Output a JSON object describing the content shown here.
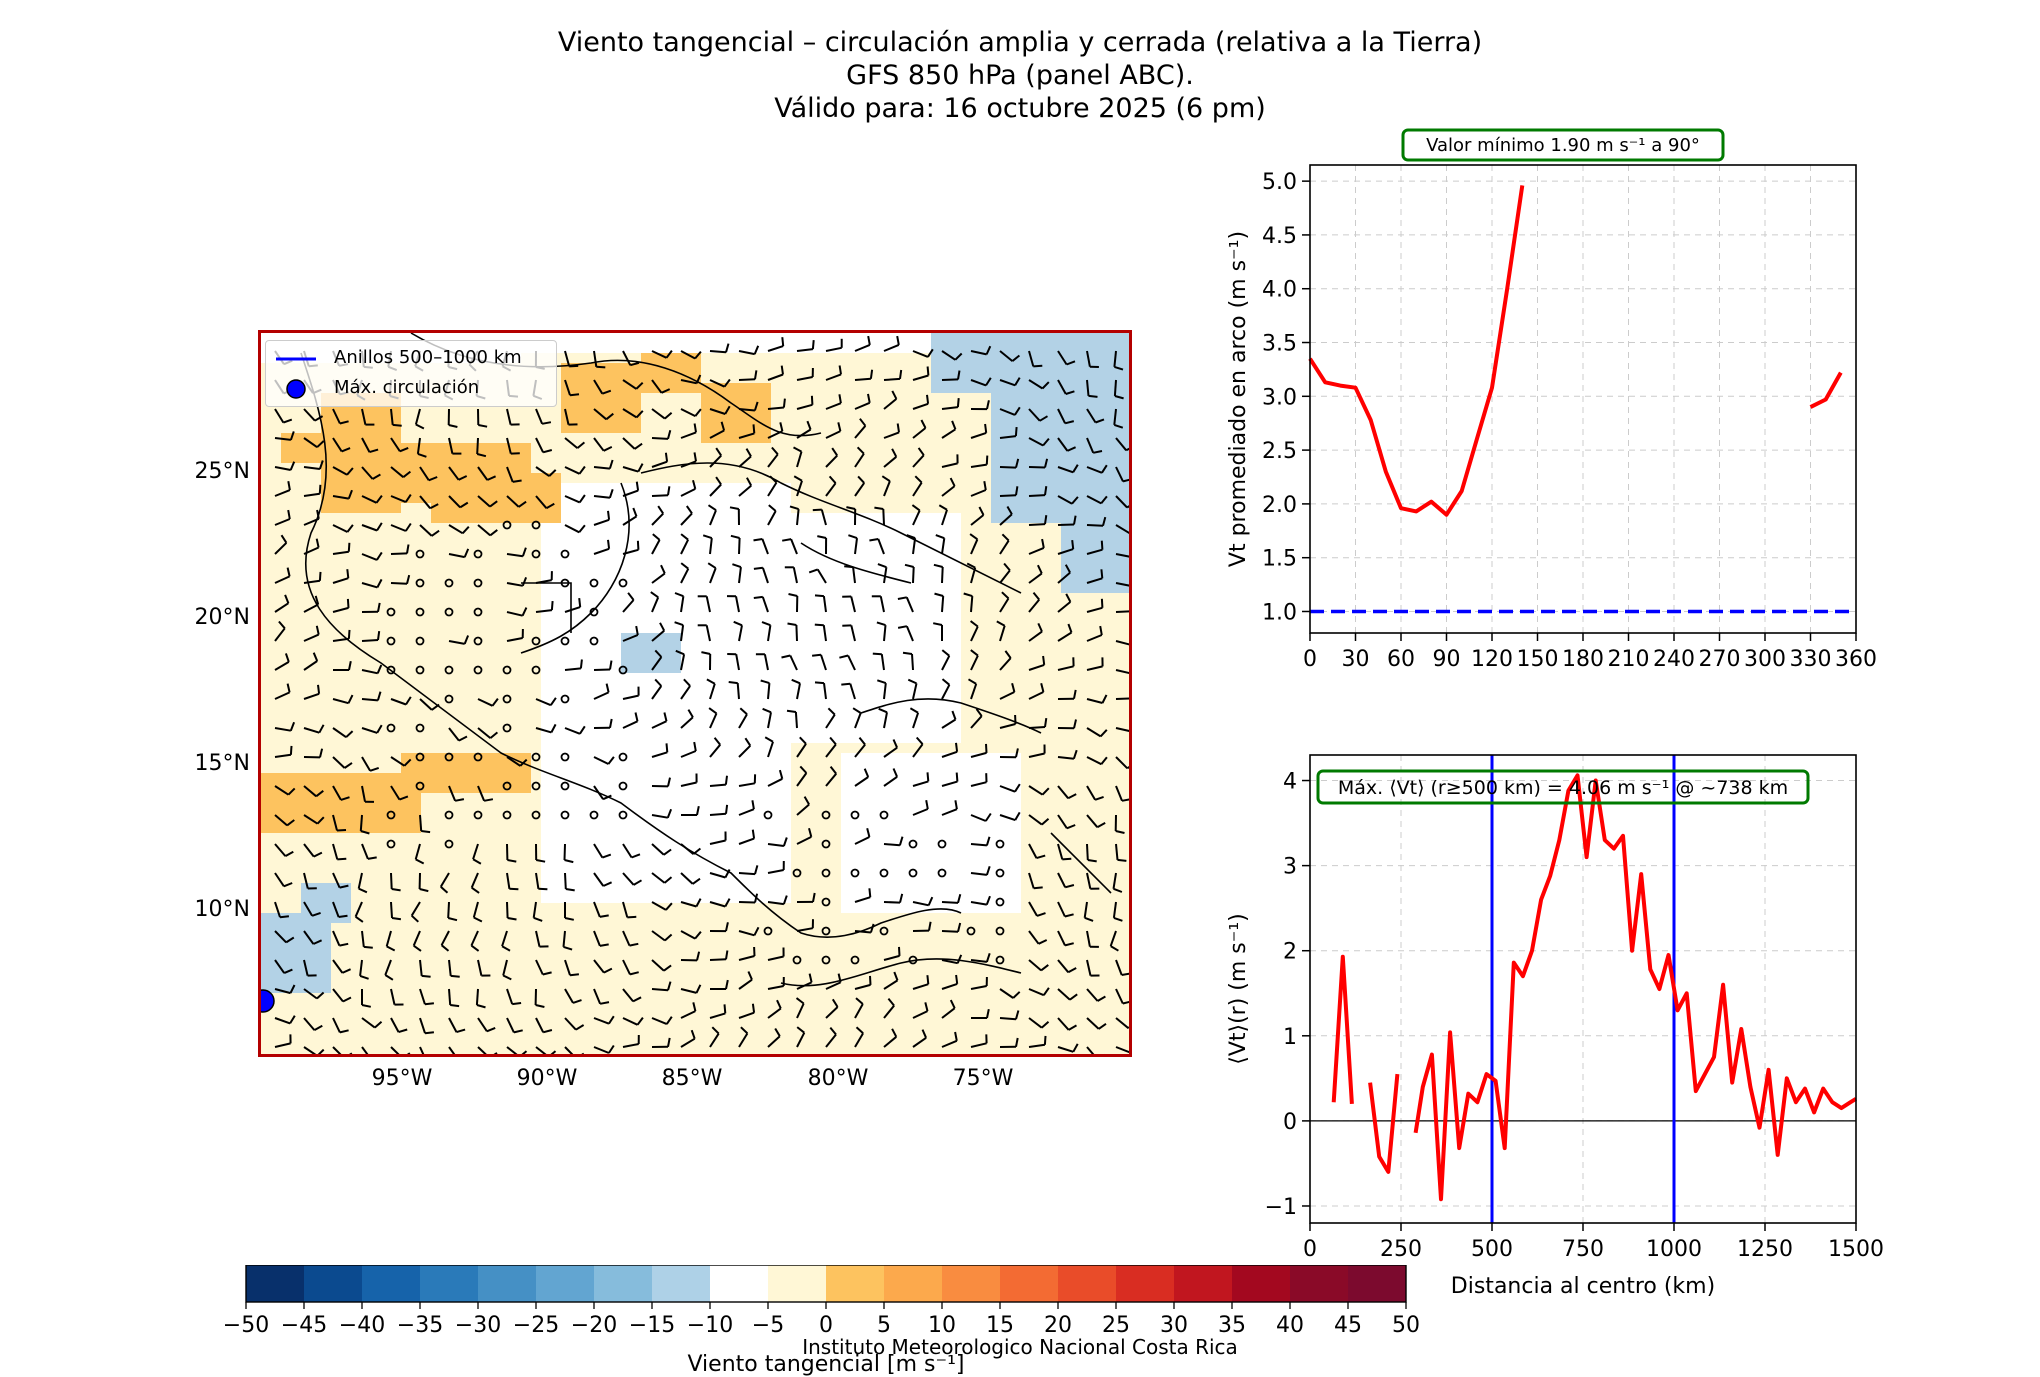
{
  "title": {
    "line1": "Viento tangencial – circulación amplia y cerrada (relativa a la Tierra)",
    "line2": "GFS 850 hPa (panel ABC).",
    "line3": "Válido para: 16 octubre 2025 (6 pm)"
  },
  "map": {
    "legend_rings": "Anillos 500–1000 km",
    "legend_max": "Máx. circulación",
    "lon_labels": [
      "95°W",
      "90°W",
      "85°W",
      "80°W",
      "75°W"
    ],
    "lat_labels": [
      "25°N",
      "20°N",
      "15°N",
      "10°N"
    ],
    "colors": {
      "positive_light": "#fff7d6",
      "positive_mid": "#fdc35f",
      "negative_light": "#b3d2e6",
      "border": "#b40000"
    }
  },
  "credit": "Instituto Meteorologico Nacional Costa Rica",
  "colorbar": {
    "label": "Viento tangencial [m s⁻¹]",
    "ticks": [
      "−50",
      "−45",
      "−40",
      "−35",
      "−30",
      "−25",
      "−20",
      "−15",
      "−10",
      "−5",
      "0",
      "5",
      "10",
      "15",
      "20",
      "25",
      "30",
      "35",
      "40",
      "45",
      "50"
    ],
    "colors": [
      "#08306b",
      "#0b4a8f",
      "#1663aa",
      "#2a7ab9",
      "#4590c5",
      "#62a5d1",
      "#86bcdc",
      "#aed1e7",
      "#ffffff",
      "#fff7d6",
      "#fdc35f",
      "#fca94c",
      "#f98c40",
      "#f36b33",
      "#e94c29",
      "#d92d22",
      "#c1161f",
      "#a3081f",
      "#8a0a28",
      "#7c0a2e"
    ]
  },
  "chart_data": [
    {
      "type": "line",
      "title": "Valor mínimo 1.90 m s⁻¹ a 90°",
      "xlabel": "",
      "ylabel": "Vt promediado en arco (m s⁻¹)",
      "xlim": [
        0,
        360
      ],
      "ylim": [
        0.8,
        5.15
      ],
      "xticks": [
        0,
        30,
        60,
        90,
        120,
        150,
        180,
        210,
        240,
        270,
        300,
        330,
        360
      ],
      "yticks": [
        1.0,
        1.5,
        2.0,
        2.5,
        3.0,
        3.5,
        4.0,
        4.5,
        5.0
      ],
      "series": [
        {
          "name": "Vt arco",
          "color": "#ff0000",
          "x": [
            0,
            10,
            20,
            30,
            40,
            50,
            60,
            70,
            80,
            90,
            100,
            110,
            120,
            130,
            140
          ],
          "y": [
            3.35,
            3.13,
            3.1,
            3.08,
            2.78,
            2.3,
            1.96,
            1.93,
            2.02,
            1.9,
            2.12,
            2.6,
            3.08,
            4.0,
            4.96
          ]
        },
        {
          "name": "Vt arco (cont.)",
          "color": "#ff0000",
          "x": [
            330,
            340,
            350
          ],
          "y": [
            2.9,
            2.97,
            3.22
          ]
        }
      ],
      "reference_line": {
        "y": 1.0,
        "color": "#0000ff",
        "style": "dashed"
      }
    },
    {
      "type": "line",
      "title": "Máx. ⟨Vt⟩ (r≥500 km) = 4.06 m s⁻¹ @ ~738 km",
      "xlabel": "Distancia al centro (km)",
      "ylabel": "⟨Vt⟩(r) (m s⁻¹)",
      "xlim": [
        0,
        1500
      ],
      "ylim": [
        -1.2,
        4.3
      ],
      "xticks": [
        0,
        250,
        500,
        750,
        1000,
        1250,
        1500
      ],
      "yticks": [
        -1,
        0,
        1,
        2,
        3,
        4
      ],
      "vlines": [
        500,
        1000
      ],
      "series": [
        {
          "name": "s1",
          "color": "#ff0000",
          "x": [
            65,
            90,
            115
          ],
          "y": [
            0.22,
            1.93,
            0.2
          ]
        },
        {
          "name": "s2",
          "color": "#ff0000",
          "x": [
            165,
            190,
            215,
            240
          ],
          "y": [
            0.45,
            -0.42,
            -0.6,
            0.55
          ]
        },
        {
          "name": "s3",
          "color": "#ff0000",
          "x": [
            290,
            310,
            335,
            360,
            385,
            410,
            435,
            460,
            485,
            510,
            535,
            560,
            585,
            610,
            635,
            660,
            685,
            710,
            735,
            760,
            785,
            810,
            835,
            860,
            885,
            910,
            935,
            960,
            985,
            1010,
            1035,
            1060,
            1085,
            1110,
            1135,
            1160,
            1185,
            1210,
            1235,
            1260,
            1285,
            1310,
            1335,
            1360,
            1385,
            1410,
            1435,
            1460,
            1485,
            1500
          ],
          "y": [
            -0.14,
            0.4,
            0.78,
            -0.92,
            1.04,
            -0.32,
            0.32,
            0.22,
            0.55,
            0.47,
            -0.32,
            1.86,
            1.7,
            2.0,
            2.6,
            2.88,
            3.3,
            3.88,
            4.06,
            3.1,
            4.0,
            3.3,
            3.2,
            3.35,
            2.0,
            2.9,
            1.78,
            1.55,
            1.95,
            1.3,
            1.5,
            0.35,
            0.55,
            0.75,
            1.6,
            0.45,
            1.08,
            0.4,
            -0.08,
            0.6,
            -0.4,
            0.5,
            0.22,
            0.38,
            0.1,
            0.38,
            0.22,
            0.15,
            0.22,
            0.26
          ]
        }
      ],
      "reference_line": {
        "y": 0,
        "color": "#000000",
        "style": "solid"
      }
    }
  ]
}
